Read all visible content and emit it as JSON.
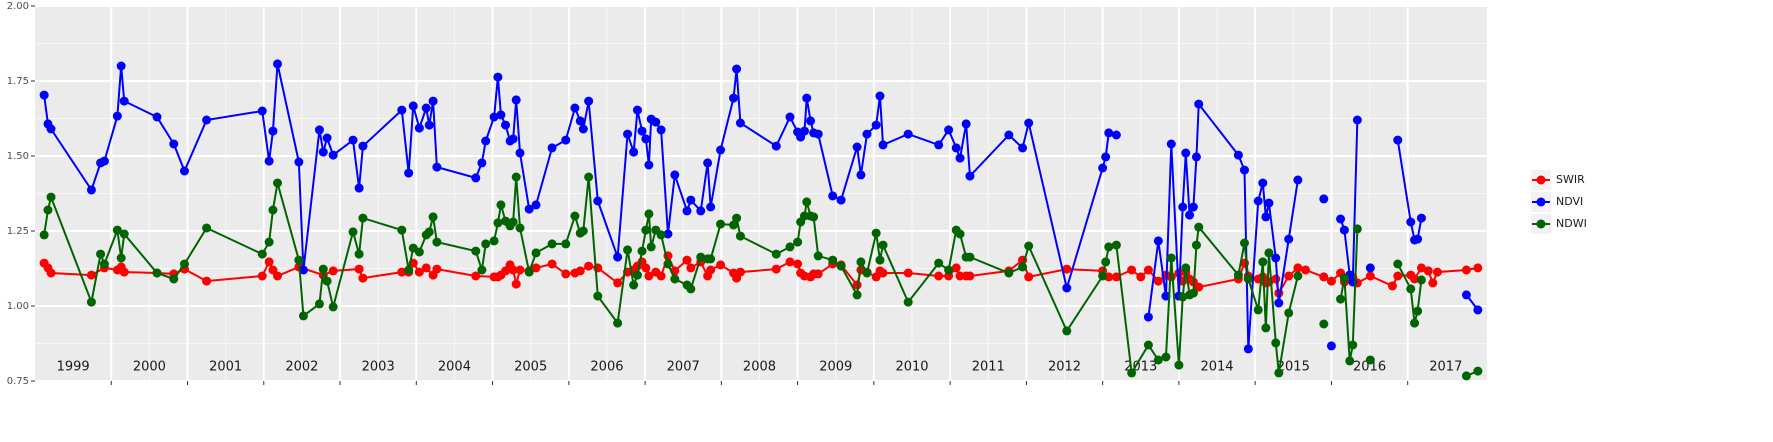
{
  "chart_data": {
    "type": "line",
    "xlim": [
      1999.0,
      2018.04
    ],
    "ylim": [
      0.75,
      2.0
    ],
    "xticks": [
      2000,
      2001,
      2002,
      2003,
      2004,
      2005,
      2006,
      2007,
      2008,
      2009,
      2010,
      2011,
      2012,
      2013,
      2014,
      2015,
      2016,
      2017
    ],
    "yticks": [
      0.75,
      {
        "value": 1.0,
        "label": "1.00"
      },
      1.25,
      {
        "value": 1.5,
        "label": "1.50"
      },
      1.75,
      {
        "value": 2.0,
        "label": "2.00"
      }
    ],
    "grid": true,
    "legend": "right",
    "year_labels": [
      {
        "value": 1999.5,
        "label": "1999"
      },
      {
        "value": 2000.5,
        "label": "2000"
      },
      {
        "value": 2001.5,
        "label": "2001"
      },
      {
        "value": 2002.5,
        "label": "2002"
      },
      {
        "value": 2003.5,
        "label": "2003"
      },
      {
        "value": 2004.5,
        "label": "2004"
      },
      {
        "value": 2005.5,
        "label": "2005"
      },
      {
        "value": 2006.5,
        "label": "2006"
      },
      {
        "value": 2007.5,
        "label": "2007"
      },
      {
        "value": 2008.5,
        "label": "2008"
      },
      {
        "value": 2009.5,
        "label": "2009"
      },
      {
        "value": 2010.5,
        "label": "2010"
      },
      {
        "value": 2011.5,
        "label": "2011"
      },
      {
        "value": 2012.5,
        "label": "2012"
      },
      {
        "value": 2013.5,
        "label": "2013"
      },
      {
        "value": 2014.5,
        "label": "2014"
      },
      {
        "value": 2015.5,
        "label": "2015"
      },
      {
        "value": 2016.5,
        "label": "2016"
      },
      {
        "value": 2017.5,
        "label": "2017"
      }
    ],
    "series": [
      {
        "name": "SWIR",
        "color": "#ff0000",
        "x": [
          1999.12,
          1999.17,
          1999.21,
          1999.74,
          1999.91,
          2000.08,
          2000.13,
          2000.17,
          2000.6,
          2000.82,
          2000.96,
          2001.25,
          2001.98,
          2002.07,
          2002.12,
          2002.18,
          2002.46,
          2002.78,
          2002.91,
          2003.25,
          2003.3,
          2003.81,
          2003.9,
          2003.96,
          2004.04,
          2004.13,
          2004.22,
          2004.27,
          2004.78,
          2005.02,
          2005.07,
          2005.11,
          2005.17,
          2005.23,
          2005.27,
          2005.31,
          2005.36,
          2005.48,
          2005.57,
          2005.78,
          2005.96,
          2006.08,
          2006.15,
          2006.26,
          2006.38,
          2006.64,
          2006.77,
          2006.85,
          2006.9,
          2006.96,
          2007.01,
          2007.05,
          2007.14,
          2007.21,
          2007.3,
          2007.39,
          2007.55,
          2007.6,
          2007.73,
          2007.82,
          2007.86,
          2007.99,
          2008.16,
          2008.2,
          2008.25,
          2008.72,
          2008.9,
          2009.0,
          2009.04,
          2009.09,
          2009.17,
          2009.21,
          2009.27,
          2009.46,
          2009.57,
          2009.78,
          2009.83,
          2009.91,
          2010.03,
          2010.08,
          2010.12,
          2010.45,
          2010.85,
          2010.98,
          2011.08,
          2011.13,
          2011.21,
          2011.26,
          2011.77,
          2011.95,
          2012.03,
          2012.53,
          2013.0,
          2013.08,
          2013.18,
          2013.38,
          2013.5,
          2013.6,
          2013.73,
          2013.83,
          2013.9,
          2014.0,
          2014.05,
          2014.09,
          2014.14,
          2014.19,
          2014.26,
          2014.78,
          2014.86,
          2014.91,
          2015.04,
          2015.1,
          2015.14,
          2015.18,
          2015.27,
          2015.31,
          2015.44,
          2015.56,
          2015.66,
          2015.9,
          2016.0,
          2016.12,
          2016.17,
          2016.24,
          2016.28,
          2016.34,
          2016.51,
          2016.8,
          2016.87,
          2017.04,
          2017.09,
          2017.18,
          2017.27,
          2017.33,
          2017.39,
          2017.77,
          2017.92
        ],
        "values": [
          1.143,
          1.127,
          1.11,
          1.103,
          1.127,
          1.12,
          1.13,
          1.113,
          1.11,
          1.107,
          1.123,
          1.083,
          1.1,
          1.147,
          1.12,
          1.1,
          1.13,
          1.103,
          1.117,
          1.123,
          1.093,
          1.113,
          1.113,
          1.143,
          1.113,
          1.127,
          1.103,
          1.123,
          1.1,
          1.097,
          1.097,
          1.103,
          1.117,
          1.137,
          1.12,
          1.073,
          1.12,
          1.117,
          1.127,
          1.14,
          1.107,
          1.11,
          1.117,
          1.133,
          1.127,
          1.077,
          1.113,
          1.12,
          1.133,
          1.147,
          1.127,
          1.1,
          1.113,
          1.1,
          1.167,
          1.117,
          1.153,
          1.127,
          1.147,
          1.1,
          1.12,
          1.137,
          1.11,
          1.093,
          1.113,
          1.123,
          1.147,
          1.14,
          1.11,
          1.1,
          1.097,
          1.107,
          1.107,
          1.14,
          1.137,
          1.07,
          1.12,
          1.113,
          1.097,
          1.117,
          1.11,
          1.11,
          1.1,
          1.1,
          1.127,
          1.1,
          1.1,
          1.1,
          1.117,
          1.153,
          1.097,
          1.123,
          1.117,
          1.097,
          1.097,
          1.12,
          1.097,
          1.12,
          1.083,
          1.103,
          1.097,
          1.11,
          1.083,
          1.113,
          1.09,
          1.08,
          1.063,
          1.09,
          1.143,
          1.1,
          1.09,
          1.097,
          1.077,
          1.08,
          1.09,
          1.043,
          1.1,
          1.127,
          1.12,
          1.097,
          1.083,
          1.11,
          1.08,
          1.103,
          1.097,
          1.077,
          1.1,
          1.067,
          1.1,
          1.103,
          1.09,
          1.127,
          1.117,
          1.077,
          1.113,
          1.12,
          1.127
        ]
      },
      {
        "name": "NDVI",
        "color": "#0000ff",
        "x": [
          1999.12,
          1999.17,
          1999.21,
          1999.74,
          1999.86,
          1999.91,
          2000.08,
          2000.13,
          2000.17,
          2000.6,
          2000.82,
          2000.96,
          2001.25,
          2001.98,
          2002.07,
          2002.12,
          2002.18,
          2002.46,
          2002.52,
          2002.73,
          2002.78,
          2002.83,
          2002.91,
          2003.17,
          2003.25,
          2003.3,
          2003.81,
          2003.9,
          2003.96,
          2004.04,
          2004.13,
          2004.17,
          2004.22,
          2004.27,
          2004.78,
          2004.86,
          2004.91,
          2005.02,
          2005.07,
          2005.11,
          2005.17,
          2005.23,
          2005.27,
          2005.31,
          2005.36,
          2005.48,
          2005.57,
          2005.78,
          2005.96,
          2006.08,
          2006.15,
          2006.19,
          2006.26,
          2006.38,
          2006.64,
          2006.77,
          2006.85,
          2006.9,
          2006.96,
          2007.01,
          2007.05,
          2007.08,
          2007.14,
          2007.21,
          2007.3,
          2007.39,
          2007.55,
          2007.6,
          2007.73,
          2007.82,
          2007.86,
          2007.99,
          2008.16,
          2008.2,
          2008.25,
          2008.72,
          2008.9,
          2009.0,
          2009.04,
          2009.09,
          2009.12,
          2009.17,
          2009.21,
          2009.27,
          2009.46,
          2009.57,
          2009.78,
          2009.83,
          2009.91,
          2010.03,
          2010.08,
          2010.12,
          2010.45,
          2010.85,
          2010.98,
          2011.08,
          2011.13,
          2011.21,
          2011.26,
          2011.77,
          2011.95,
          2012.03,
          2012.53,
          2013.0,
          2013.04,
          2013.08,
          2013.18,
          null,
          2013.6,
          2013.73,
          2013.83,
          2013.9,
          2014.0,
          2014.05,
          2014.09,
          2014.14,
          2014.19,
          2014.23,
          2014.26,
          2014.78,
          2014.86,
          2014.91,
          2015.04,
          2015.1,
          2015.14,
          2015.18,
          2015.27,
          2015.31,
          2015.44,
          2015.56,
          null,
          2015.9,
          null,
          2016.0,
          null,
          2016.12,
          2016.17,
          2016.24,
          2016.28,
          2016.34,
          null,
          2016.51,
          null,
          2016.87,
          2017.04,
          2017.09,
          2017.13,
          2017.18,
          null,
          2017.77,
          2017.92
        ],
        "values": [
          1.703,
          1.607,
          1.59,
          1.387,
          1.477,
          1.483,
          1.633,
          1.8,
          1.683,
          1.63,
          1.54,
          1.45,
          1.62,
          1.65,
          1.483,
          1.583,
          1.807,
          1.48,
          1.12,
          1.587,
          1.513,
          1.56,
          1.503,
          1.553,
          1.393,
          1.533,
          1.653,
          1.443,
          1.667,
          1.593,
          1.66,
          1.603,
          1.683,
          1.463,
          1.427,
          1.477,
          1.55,
          1.63,
          1.763,
          1.637,
          1.603,
          1.55,
          1.557,
          1.687,
          1.51,
          1.323,
          1.337,
          1.527,
          1.553,
          1.66,
          1.617,
          1.59,
          1.683,
          1.35,
          1.163,
          1.573,
          1.513,
          1.653,
          1.583,
          1.557,
          1.47,
          1.623,
          1.613,
          1.587,
          1.24,
          1.437,
          1.317,
          1.353,
          1.317,
          1.477,
          1.33,
          1.52,
          1.693,
          1.79,
          1.61,
          1.533,
          1.63,
          1.58,
          1.563,
          1.583,
          1.693,
          1.617,
          1.577,
          1.573,
          1.367,
          1.353,
          1.53,
          1.437,
          1.573,
          1.603,
          1.7,
          1.537,
          1.573,
          1.537,
          1.587,
          1.527,
          1.493,
          1.607,
          1.433,
          1.57,
          1.527,
          1.61,
          1.06,
          1.46,
          1.497,
          1.577,
          1.57,
          null,
          0.963,
          1.217,
          1.033,
          1.54,
          1.033,
          1.33,
          1.51,
          1.303,
          1.33,
          1.497,
          1.673,
          1.503,
          1.453,
          0.857,
          1.35,
          1.41,
          1.297,
          1.343,
          1.16,
          1.01,
          1.223,
          1.42,
          null,
          1.357,
          null,
          0.867,
          null,
          1.29,
          1.253,
          1.103,
          1.08,
          1.62,
          null,
          1.127,
          null,
          1.553,
          1.28,
          1.22,
          1.223,
          1.293,
          null,
          1.037,
          0.987
        ]
      },
      {
        "name": "NDWI",
        "color": "#006400",
        "x": [
          1999.12,
          1999.17,
          1999.21,
          1999.74,
          1999.86,
          1999.91,
          2000.08,
          2000.13,
          2000.17,
          2000.6,
          2000.82,
          2000.96,
          2001.25,
          2001.98,
          2002.07,
          2002.12,
          2002.18,
          2002.46,
          2002.52,
          2002.73,
          2002.78,
          2002.83,
          2002.91,
          2003.17,
          2003.25,
          2003.3,
          2003.81,
          2003.9,
          2003.96,
          2004.04,
          2004.13,
          2004.17,
          2004.22,
          2004.27,
          2004.78,
          2004.86,
          2004.91,
          2005.02,
          2005.07,
          2005.11,
          2005.17,
          2005.23,
          2005.27,
          2005.31,
          2005.36,
          2005.48,
          2005.57,
          2005.78,
          2005.96,
          2006.08,
          2006.15,
          2006.19,
          2006.26,
          2006.38,
          2006.64,
          2006.77,
          2006.85,
          2006.9,
          2006.96,
          2007.01,
          2007.05,
          2007.08,
          2007.14,
          2007.21,
          2007.3,
          2007.39,
          2007.55,
          2007.6,
          2007.73,
          2007.82,
          2007.86,
          2007.99,
          2008.16,
          2008.2,
          2008.25,
          2008.72,
          2008.9,
          2009.0,
          2009.04,
          2009.09,
          2009.12,
          2009.17,
          2009.21,
          2009.27,
          2009.46,
          2009.57,
          2009.78,
          2009.83,
          2009.91,
          2010.03,
          2010.08,
          2010.12,
          2010.45,
          2010.85,
          2010.98,
          2011.08,
          2011.13,
          2011.21,
          2011.26,
          2011.77,
          2011.95,
          2012.03,
          2012.53,
          2013.0,
          2013.04,
          2013.08,
          2013.18,
          2013.38,
          2013.6,
          2013.73,
          2013.83,
          2013.9,
          2014.0,
          2014.05,
          2014.09,
          2014.14,
          2014.19,
          2014.23,
          2014.26,
          2014.78,
          2014.86,
          2014.91,
          2015.04,
          2015.1,
          2015.14,
          2015.18,
          2015.27,
          2015.31,
          2015.44,
          2015.56,
          null,
          2015.9,
          null,
          2016.12,
          2016.17,
          2016.24,
          2016.28,
          2016.34,
          null,
          2016.51,
          null,
          2016.87,
          2017.04,
          2017.09,
          2017.13,
          2017.18,
          null,
          2017.77,
          2017.92
        ],
        "values": [
          1.237,
          1.32,
          1.363,
          1.013,
          1.173,
          1.14,
          1.253,
          1.16,
          1.24,
          1.11,
          1.09,
          1.14,
          1.26,
          1.173,
          1.213,
          1.32,
          1.41,
          1.153,
          0.967,
          1.007,
          1.123,
          1.083,
          0.997,
          1.247,
          1.173,
          1.293,
          1.253,
          1.12,
          1.193,
          1.18,
          1.237,
          1.247,
          1.297,
          1.213,
          1.183,
          1.12,
          1.207,
          1.217,
          1.277,
          1.337,
          1.283,
          1.267,
          1.28,
          1.43,
          1.26,
          1.113,
          1.177,
          1.207,
          1.207,
          1.3,
          1.243,
          1.25,
          1.43,
          1.033,
          0.943,
          1.187,
          1.07,
          1.103,
          1.183,
          1.253,
          1.307,
          1.197,
          1.253,
          1.237,
          1.14,
          1.09,
          1.07,
          1.057,
          1.163,
          1.157,
          1.157,
          1.273,
          1.27,
          1.293,
          1.233,
          1.173,
          1.197,
          1.213,
          1.28,
          1.3,
          1.347,
          1.3,
          1.297,
          1.167,
          1.153,
          1.133,
          1.037,
          1.147,
          1.11,
          1.243,
          1.153,
          1.203,
          1.013,
          1.143,
          1.12,
          1.253,
          1.24,
          1.163,
          1.163,
          1.11,
          1.13,
          1.2,
          0.917,
          1.1,
          1.147,
          1.197,
          1.203,
          0.777,
          0.87,
          0.82,
          0.83,
          1.16,
          0.803,
          1.03,
          1.127,
          1.037,
          1.043,
          1.203,
          1.263,
          1.103,
          1.21,
          1.09,
          0.987,
          1.147,
          0.927,
          1.177,
          0.877,
          0.777,
          0.977,
          1.1,
          null,
          0.94,
          null,
          1.023,
          1.093,
          0.817,
          0.87,
          1.257,
          null,
          0.82,
          null,
          1.14,
          1.057,
          0.943,
          0.983,
          1.087,
          null,
          0.767,
          0.783
        ]
      }
    ]
  }
}
